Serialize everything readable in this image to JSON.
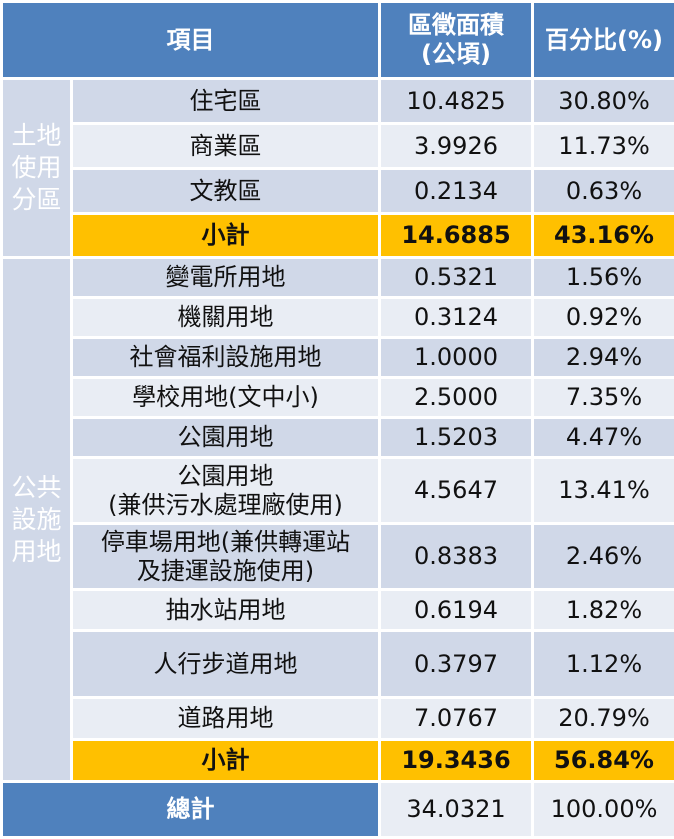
{
  "header": {
    "item": "項目",
    "area_line1": "區徵面積",
    "area_line2": "(公頃)",
    "percent": "百分比(%)"
  },
  "groups": [
    {
      "label_lines": [
        "土地",
        "使用",
        "分區"
      ],
      "rows": [
        {
          "name": "住宅區",
          "area": "10.4825",
          "percent": "30.80%"
        },
        {
          "name": "商業區",
          "area": "3.9926",
          "percent": "11.73%"
        },
        {
          "name": "文教區",
          "area": "0.2134",
          "percent": "0.63%"
        }
      ],
      "subtotal": {
        "label": "小計",
        "area": "14.6885",
        "percent": "43.16%"
      }
    },
    {
      "label_lines": [
        "公共",
        "設施",
        "用地"
      ],
      "rows": [
        {
          "name": "變電所用地",
          "area": "0.5321",
          "percent": "1.56%"
        },
        {
          "name": "機關用地",
          "area": "0.3124",
          "percent": "0.92%"
        },
        {
          "name": "社會福利設施用地",
          "area": "1.0000",
          "percent": "2.94%"
        },
        {
          "name": "學校用地(文中小)",
          "area": "2.5000",
          "percent": "7.35%"
        },
        {
          "name": "公園用地",
          "area": "1.5203",
          "percent": "4.47%"
        },
        {
          "name_line1": "公園用地",
          "name_line2": "(兼供污水處理廠使用)",
          "area": "4.5647",
          "percent": "13.41%"
        },
        {
          "name_line1": "停車場用地(兼供轉運站",
          "name_line2": "及捷運設施使用)",
          "area": "0.8383",
          "percent": "2.46%"
        },
        {
          "name": "抽水站用地",
          "area": "0.6194",
          "percent": "1.82%"
        },
        {
          "name": "人行步道用地",
          "area": "0.3797",
          "percent": "1.12%"
        },
        {
          "name": "道路用地",
          "area": "7.0767",
          "percent": "20.79%"
        }
      ],
      "subtotal": {
        "label": "小計",
        "area": "19.3436",
        "percent": "56.84%"
      }
    }
  ],
  "total": {
    "label": "總計",
    "area": "34.0321",
    "percent": "100.00%"
  },
  "colors": {
    "header_blue": "#4f81bd",
    "row_dark": "#d0d8e8",
    "row_light": "#e9edf4",
    "subtotal_gold": "#ffc000"
  }
}
